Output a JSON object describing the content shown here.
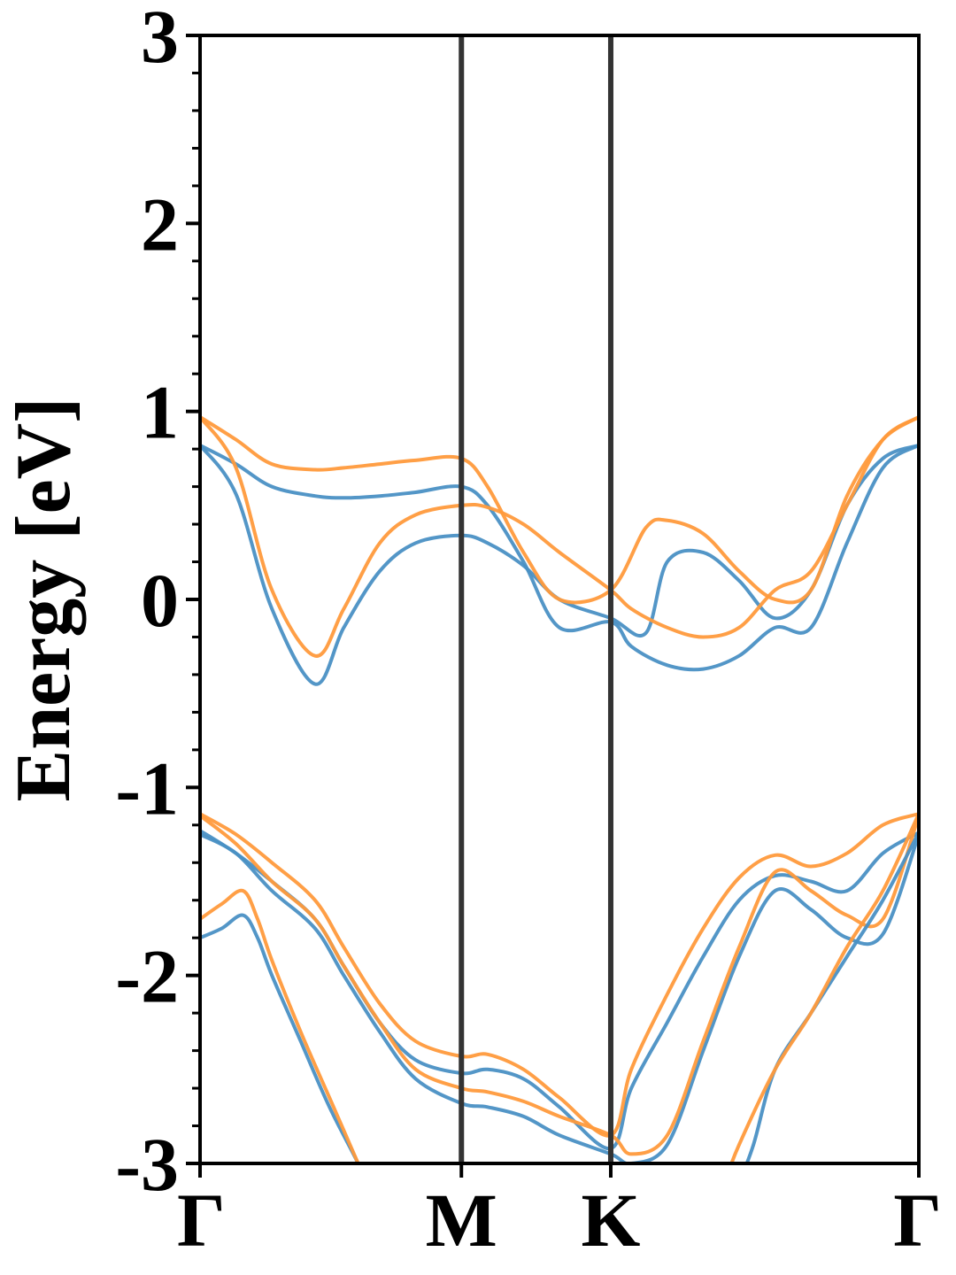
{
  "chart_data": {
    "type": "line",
    "title": "",
    "xlabel": "",
    "ylabel": "Energy [eV]",
    "ylim": [
      -3,
      3
    ],
    "xlim": [
      0,
      1
    ],
    "yticks": [
      -3,
      -2,
      -1,
      0,
      1,
      2,
      3
    ],
    "ytick_labels": [
      "-3",
      "-2",
      "-1",
      "0",
      "1",
      "2",
      "3"
    ],
    "xticks": [
      0,
      0.3636,
      0.5714,
      1
    ],
    "xtick_labels": [
      "Γ",
      "M",
      "K",
      "Γ"
    ],
    "grid": false,
    "legend": "none",
    "vlines_at": [
      0.3636,
      0.5714
    ],
    "colors": {
      "series_a": "#4a90c4",
      "series_b": "#ff9a3c",
      "vline": "#333333"
    },
    "series": [
      {
        "color_key": "series_a",
        "x": [
          0,
          0.05,
          0.1,
          0.16,
          0.2,
          0.25,
          0.3,
          0.3636,
          0.4,
          0.45,
          0.5,
          0.5714,
          0.62,
          0.65,
          0.7,
          0.75,
          0.8,
          0.85,
          0.9,
          0.95,
          1.0
        ],
        "y": [
          0.82,
          0.56,
          -0.05,
          -0.45,
          -0.15,
          0.15,
          0.3,
          0.34,
          0.3,
          0.18,
          0.0,
          -0.1,
          -0.18,
          0.2,
          0.25,
          0.1,
          -0.1,
          0.05,
          0.5,
          0.75,
          0.82
        ]
      },
      {
        "color_key": "series_a",
        "x": [
          0,
          0.05,
          0.1,
          0.16,
          0.2,
          0.25,
          0.3,
          0.3636,
          0.4,
          0.45,
          0.5,
          0.5714,
          0.6,
          0.65,
          0.7,
          0.75,
          0.8,
          0.85,
          0.9,
          0.95,
          1.0
        ],
        "y": [
          0.82,
          0.72,
          0.6,
          0.55,
          0.54,
          0.55,
          0.57,
          0.6,
          0.5,
          0.2,
          -0.15,
          -0.12,
          -0.25,
          -0.35,
          -0.37,
          -0.3,
          -0.15,
          -0.15,
          0.3,
          0.7,
          0.82
        ]
      },
      {
        "color_key": "series_b",
        "x": [
          0,
          0.05,
          0.1,
          0.16,
          0.2,
          0.25,
          0.3,
          0.3636,
          0.4,
          0.45,
          0.5,
          0.5714,
          0.6,
          0.65,
          0.7,
          0.75,
          0.8,
          0.85,
          0.9,
          0.95,
          1.0
        ],
        "y": [
          0.97,
          0.7,
          0.05,
          -0.3,
          -0.05,
          0.3,
          0.45,
          0.5,
          0.49,
          0.4,
          0.25,
          0.05,
          -0.05,
          -0.15,
          -0.2,
          -0.15,
          0.05,
          0.15,
          0.5,
          0.85,
          0.97
        ]
      },
      {
        "color_key": "series_b",
        "x": [
          0,
          0.05,
          0.1,
          0.16,
          0.2,
          0.25,
          0.3,
          0.3636,
          0.4,
          0.45,
          0.5,
          0.5714,
          0.62,
          0.65,
          0.7,
          0.75,
          0.8,
          0.85,
          0.9,
          0.95,
          1.0
        ],
        "y": [
          0.97,
          0.85,
          0.72,
          0.69,
          0.7,
          0.72,
          0.74,
          0.75,
          0.6,
          0.25,
          0.0,
          0.05,
          0.38,
          0.42,
          0.35,
          0.15,
          0.0,
          0.05,
          0.55,
          0.85,
          0.97
        ]
      },
      {
        "color_key": "series_a",
        "x": [
          0,
          0.05,
          0.1,
          0.16,
          0.2,
          0.25,
          0.3,
          0.3636,
          0.4,
          0.45,
          0.5,
          0.5714,
          0.6,
          0.65,
          0.7,
          0.75,
          0.8,
          0.85,
          0.9,
          0.95,
          1.0
        ],
        "y": [
          -1.23,
          -1.35,
          -1.5,
          -1.7,
          -1.95,
          -2.25,
          -2.45,
          -2.52,
          -2.5,
          -2.55,
          -2.7,
          -2.92,
          -2.6,
          -2.25,
          -1.9,
          -1.6,
          -1.47,
          -1.5,
          -1.55,
          -1.35,
          -1.24
        ]
      },
      {
        "color_key": "series_b",
        "x": [
          0,
          0.05,
          0.1,
          0.16,
          0.2,
          0.25,
          0.3,
          0.3636,
          0.4,
          0.45,
          0.5,
          0.5714,
          0.6,
          0.65,
          0.7,
          0.75,
          0.8,
          0.85,
          0.9,
          0.95,
          1.0
        ],
        "y": [
          -1.14,
          -1.25,
          -1.4,
          -1.6,
          -1.85,
          -2.15,
          -2.35,
          -2.43,
          -2.42,
          -2.5,
          -2.65,
          -2.85,
          -2.5,
          -2.1,
          -1.75,
          -1.48,
          -1.36,
          -1.42,
          -1.35,
          -1.2,
          -1.14
        ]
      },
      {
        "color_key": "series_a",
        "x": [
          0,
          0.05,
          0.1,
          0.16,
          0.2,
          0.25,
          0.3,
          0.3636,
          0.4,
          0.45,
          0.5,
          0.5714,
          0.6,
          0.65,
          0.7,
          0.75,
          0.8,
          0.85,
          0.9,
          0.95,
          1.0
        ],
        "y": [
          -1.25,
          -1.35,
          -1.55,
          -1.75,
          -2.0,
          -2.3,
          -2.55,
          -2.68,
          -2.7,
          -2.75,
          -2.85,
          -2.95,
          -3.0,
          -2.9,
          -2.4,
          -1.9,
          -1.55,
          -1.65,
          -1.8,
          -1.78,
          -1.25
        ]
      },
      {
        "color_key": "series_b",
        "x": [
          0,
          0.05,
          0.1,
          0.16,
          0.2,
          0.25,
          0.3,
          0.3636,
          0.4,
          0.45,
          0.5,
          0.5714,
          0.6,
          0.65,
          0.7,
          0.75,
          0.8,
          0.85,
          0.9,
          0.95,
          1.0
        ],
        "y": [
          -1.15,
          -1.3,
          -1.5,
          -1.7,
          -1.95,
          -2.25,
          -2.5,
          -2.6,
          -2.62,
          -2.67,
          -2.75,
          -2.85,
          -2.95,
          -2.85,
          -2.35,
          -1.85,
          -1.45,
          -1.55,
          -1.68,
          -1.7,
          -1.15
        ]
      },
      {
        "color_key": "series_a",
        "x": [
          0,
          0.03,
          0.06,
          0.08,
          0.1,
          0.14,
          0.18,
          0.22,
          0.23
        ],
        "y": [
          -1.8,
          -1.75,
          -1.68,
          -1.8,
          -2.0,
          -2.35,
          -2.7,
          -3.0,
          -3.1
        ]
      },
      {
        "color_key": "series_b",
        "x": [
          0,
          0.03,
          0.06,
          0.08,
          0.1,
          0.14,
          0.18,
          0.22,
          0.23
        ],
        "y": [
          -1.7,
          -1.62,
          -1.55,
          -1.7,
          -1.92,
          -2.3,
          -2.65,
          -3.0,
          -3.1
        ]
      },
      {
        "color_key": "series_a",
        "x": [
          0.75,
          0.77,
          0.8,
          0.85,
          0.9,
          0.95,
          1.0
        ],
        "y": [
          -3.1,
          -2.9,
          -2.5,
          -2.2,
          -1.9,
          -1.6,
          -1.24
        ]
      },
      {
        "color_key": "series_b",
        "x": [
          0.73,
          0.75,
          0.8,
          0.85,
          0.9,
          0.95,
          1.0
        ],
        "y": [
          -3.1,
          -2.9,
          -2.5,
          -2.2,
          -1.85,
          -1.55,
          -1.14
        ]
      }
    ]
  }
}
